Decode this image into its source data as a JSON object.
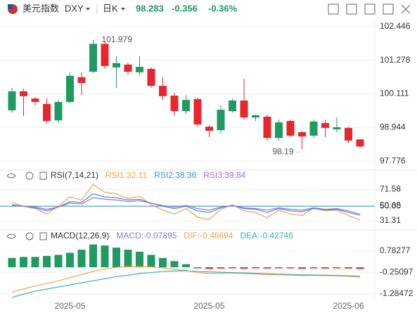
{
  "header": {
    "name": "美元指数",
    "symbol": "DXY",
    "period": "日K",
    "last": "98.283",
    "change": "-0.356",
    "change_pct": "-0.36%"
  },
  "chart_data": [
    {
      "type": "candlestick",
      "categories": [
        null,
        null,
        null,
        null,
        null,
        "2025-05",
        null,
        null,
        null,
        null,
        null,
        null,
        null,
        null,
        null,
        null,
        null,
        "2025-05",
        null,
        null,
        null,
        null,
        null,
        null,
        null,
        null,
        null,
        null,
        null,
        "2025-06",
        null
      ],
      "open": [
        99.54,
        100.2,
        99.95,
        99.76,
        99.19,
        99.83,
        100.69,
        100.88,
        101.85,
        101.03,
        101.13,
        100.86,
        100.98,
        100.39,
        100.05,
        99.51,
        99.93,
        98.97,
        98.85,
        99.51,
        99.88,
        99.29,
        99.32,
        98.58,
        99.17,
        98.78,
        98.66,
        99.1,
        98.88,
        98.93,
        98.53
      ],
      "high": [
        100.32,
        100.29,
        100.0,
        99.95,
        99.9,
        100.86,
        100.86,
        101.979,
        101.93,
        101.42,
        101.2,
        101.42,
        101.03,
        100.69,
        100.15,
        100.07,
        99.98,
        99.02,
        99.71,
        99.95,
        100.64,
        99.39,
        99.39,
        99.22,
        99.22,
        98.83,
        99.22,
        99.22,
        99.29,
        98.97,
        98.53
      ],
      "low": [
        99.46,
        99.34,
        99.71,
        99.1,
        99.1,
        99.78,
        100.07,
        100.83,
        100.98,
        100.32,
        100.78,
        100.74,
        100.32,
        99.9,
        99.34,
        99.41,
        98.97,
        98.61,
        98.73,
        99.46,
        99.22,
        99.17,
        98.49,
        98.49,
        98.61,
        98.19,
        98.58,
        98.61,
        98.78,
        98.41,
        98.243
      ],
      "close": [
        100.2,
        100.03,
        99.83,
        99.17,
        99.83,
        100.74,
        100.49,
        101.85,
        101.08,
        101.18,
        100.88,
        101.05,
        100.39,
        100.03,
        99.51,
        99.9,
        99.05,
        98.83,
        99.56,
        99.88,
        99.29,
        99.37,
        98.58,
        99.12,
        98.66,
        98.63,
        99.15,
        98.93,
        98.95,
        98.49,
        98.283
      ],
      "up_color": "#1f9a62",
      "down_color": "#e8262d",
      "ylim": [
        97.51,
        102.64
      ],
      "yticks": [
        97.776,
        98.944,
        100.111,
        101.278,
        102.446
      ],
      "grid": true
    },
    {
      "type": "line",
      "title": "RSI(7,14,21)",
      "series": [
        {
          "name": "RSI1:32.11",
          "color": "#f5a04a",
          "values": [
            55,
            50,
            47,
            40,
            50,
            62,
            58,
            78,
            68,
            66,
            60,
            63,
            52,
            45,
            40,
            47,
            36,
            33,
            46,
            52,
            44,
            42,
            35,
            45,
            40,
            38,
            48,
            44,
            45,
            38,
            32.11
          ]
        },
        {
          "name": "RSI2:38.36",
          "color": "#3d8ee0",
          "values": [
            52,
            50,
            48,
            44,
            49,
            56,
            55,
            66,
            62,
            61,
            58,
            59,
            54,
            50,
            47,
            50,
            44,
            42,
            48,
            51,
            47,
            46,
            42,
            47,
            44,
            43,
            47,
            45,
            46,
            42,
            38.36
          ]
        },
        {
          "name": "RSI3:39.84",
          "color": "#9b72d6",
          "values": [
            51,
            50,
            49,
            46,
            49,
            54,
            53,
            61,
            59,
            58,
            56,
            57,
            54,
            51,
            49,
            51,
            47,
            45,
            49,
            51,
            48,
            47,
            45,
            48,
            46,
            45,
            48,
            46,
            47,
            44,
            39.84
          ]
        }
      ],
      "reference_line": {
        "value": 50,
        "color": "#2f9ad8"
      },
      "ylim": [
        24,
        82
      ],
      "yticks": [
        31.31,
        {
          "value": 50,
          "label": "50.00"
        },
        50.65,
        71.58
      ],
      "grid": true
    },
    {
      "type": "macd",
      "title": "MACD(12,26,9)",
      "series": [
        {
          "name": "MACD:-0.07895",
          "kind": "bar",
          "color": "#8a7fd6",
          "up_color": "#1f9a62",
          "down_color": "#e8262d",
          "values": [
            0.45,
            0.5,
            0.5,
            0.55,
            0.6,
            0.7,
            0.85,
            1.1,
            1.05,
            0.95,
            0.85,
            0.75,
            0.6,
            0.45,
            0.3,
            0.15,
            -0.05,
            -0.08,
            -0.06,
            -0.05,
            -0.07,
            -0.05,
            -0.06,
            -0.05,
            -0.05,
            -0.07,
            -0.05,
            -0.06,
            -0.05,
            -0.06,
            -0.07895
          ]
        },
        {
          "name": "DIF:-0.46694",
          "kind": "line",
          "color": "#f5a04a",
          "values": [
            -1.2,
            -1.05,
            -0.9,
            -0.78,
            -0.65,
            -0.5,
            -0.35,
            -0.2,
            -0.08,
            0.0,
            0.03,
            0.04,
            0.02,
            -0.03,
            -0.1,
            -0.15,
            -0.25,
            -0.3,
            -0.3,
            -0.28,
            -0.3,
            -0.32,
            -0.36,
            -0.36,
            -0.38,
            -0.4,
            -0.39,
            -0.4,
            -0.41,
            -0.44,
            -0.46694
          ]
        },
        {
          "name": "DEA:-0.42746",
          "kind": "line",
          "color": "#38b3b0",
          "values": [
            -1.45,
            -1.3,
            -1.15,
            -1.05,
            -0.95,
            -0.85,
            -0.75,
            -0.65,
            -0.55,
            -0.45,
            -0.38,
            -0.3,
            -0.25,
            -0.2,
            -0.18,
            -0.17,
            -0.2,
            -0.22,
            -0.24,
            -0.25,
            -0.27,
            -0.29,
            -0.31,
            -0.33,
            -0.34,
            -0.36,
            -0.37,
            -0.38,
            -0.39,
            -0.41,
            -0.42746
          ]
        }
      ],
      "ylim": [
        -1.52,
        1.26
      ],
      "yticks": [
        -1.28472,
        -0.25097,
        0.78277
      ],
      "grid": true
    }
  ]
}
